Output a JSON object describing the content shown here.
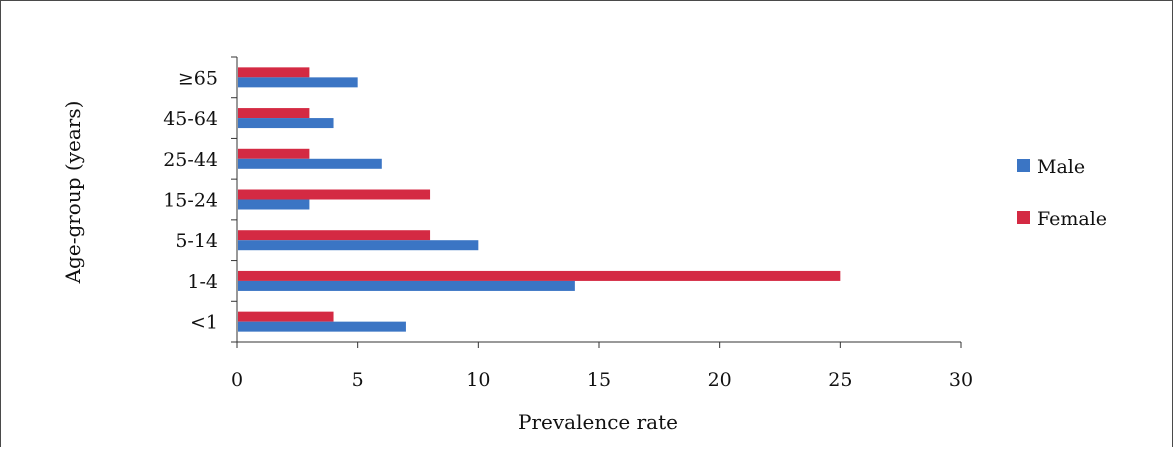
{
  "chart_data": {
    "type": "bar",
    "orientation": "horizontal",
    "categories": [
      "<1",
      "1-4",
      "5-14",
      "15-24",
      "25-44",
      "45-64",
      "≥65"
    ],
    "series": [
      {
        "name": "Male",
        "color": "#3b75c4",
        "values": [
          7,
          14,
          10,
          3,
          6,
          4,
          5
        ]
      },
      {
        "name": "Female",
        "color": "#d42a43",
        "values": [
          4,
          25,
          8,
          8,
          3,
          3,
          3
        ]
      }
    ],
    "xlabel": "Prevalence rate",
    "ylabel": "Age-group (years)",
    "xlim": [
      0,
      30
    ],
    "xticks": [
      0,
      5,
      10,
      15,
      20,
      25,
      30
    ],
    "grid": false,
    "legend_position": "right"
  }
}
